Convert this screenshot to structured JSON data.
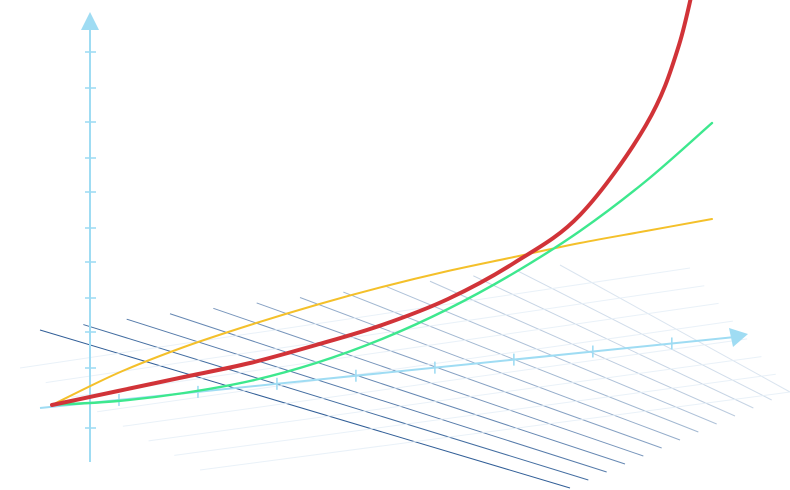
{
  "chart_data": {
    "type": "line",
    "title": "",
    "xlabel": "",
    "ylabel": "",
    "grid": true,
    "legend": "none",
    "x_tick_count": 8,
    "y_tick_count": 12,
    "series": [
      {
        "curve": "saturating",
        "color": "#f4c02a",
        "points": [
          [
            0,
            0
          ],
          [
            0.1,
            0.16
          ],
          [
            0.2,
            0.29
          ],
          [
            0.3,
            0.4
          ],
          [
            0.4,
            0.5
          ],
          [
            0.5,
            0.59
          ],
          [
            0.6,
            0.67
          ],
          [
            0.7,
            0.74
          ],
          [
            0.8,
            0.81
          ],
          [
            0.9,
            0.87
          ],
          [
            1.0,
            0.93
          ]
        ]
      },
      {
        "curve": "quadratic",
        "color": "#3de88e",
        "points": [
          [
            0,
            0
          ],
          [
            0.1,
            0.02
          ],
          [
            0.2,
            0.06
          ],
          [
            0.3,
            0.12
          ],
          [
            0.4,
            0.21
          ],
          [
            0.5,
            0.33
          ],
          [
            0.6,
            0.48
          ],
          [
            0.7,
            0.66
          ],
          [
            0.8,
            0.87
          ],
          [
            0.9,
            1.12
          ],
          [
            1.0,
            1.41
          ]
        ]
      },
      {
        "curve": "divergent",
        "color": "#d13338",
        "points": [
          [
            0,
            0
          ],
          [
            0.1,
            0.07
          ],
          [
            0.2,
            0.14
          ],
          [
            0.3,
            0.21
          ],
          [
            0.4,
            0.3
          ],
          [
            0.5,
            0.4
          ],
          [
            0.6,
            0.53
          ],
          [
            0.7,
            0.71
          ],
          [
            0.8,
            0.95
          ],
          [
            0.9,
            1.4
          ],
          [
            0.95,
            1.8
          ],
          [
            0.985,
            2.3
          ]
        ]
      }
    ]
  },
  "colors": {
    "axis": "#9fdcf3",
    "grid_far": "#e4edf6",
    "grid_near": "#1b4d8c"
  }
}
